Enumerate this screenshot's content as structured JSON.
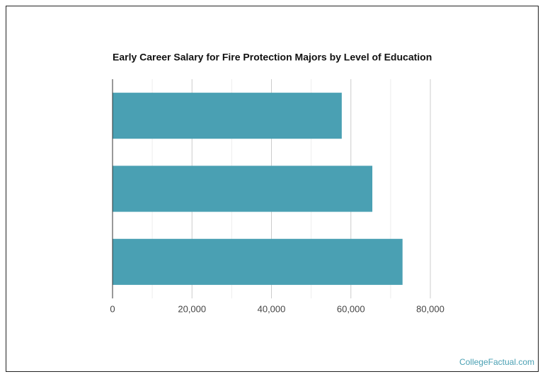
{
  "chart_data": {
    "type": "hbar",
    "title": "Early Career Salary for Fire Protection Majors by Level of Education",
    "categories": [
      null,
      null,
      null
    ],
    "values": [
      57700,
      65400,
      73000
    ],
    "color": "#4aa0b3",
    "xlim": [
      0,
      80000
    ],
    "xticks": [
      0,
      {
        "value": 20000,
        "label": "20,000"
      },
      {
        "value": 40000,
        "label": "40,000"
      },
      {
        "value": 60000,
        "label": "60,000"
      },
      {
        "value": 80000,
        "label": "80,000"
      }
    ],
    "minor_xticks": [
      10000,
      30000,
      50000,
      70000
    ],
    "grid": true,
    "source": "CollegeFactual.com"
  }
}
